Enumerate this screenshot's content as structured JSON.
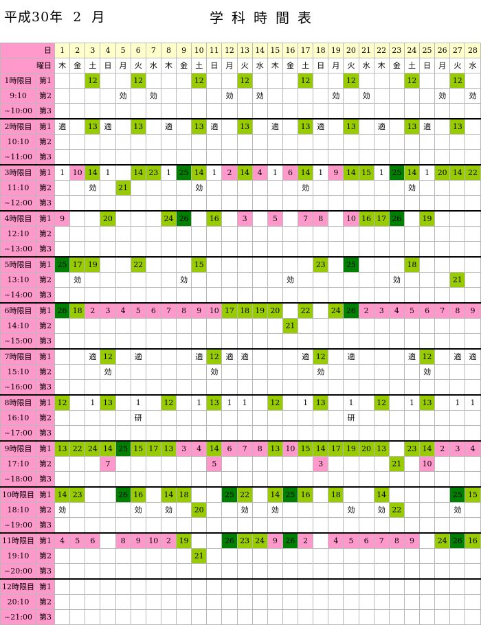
{
  "header": {
    "era": "平成30年  2  月",
    "title": "学科時間表"
  },
  "labels": {
    "day": "日",
    "weekday": "曜日",
    "sub": [
      "第1",
      "第2",
      "第3"
    ]
  },
  "days": [
    1,
    2,
    3,
    4,
    5,
    6,
    7,
    8,
    9,
    10,
    11,
    12,
    13,
    14,
    15,
    16,
    17,
    18,
    19,
    20,
    21,
    22,
    23,
    24,
    25,
    26,
    27,
    28
  ],
  "weekdays": [
    "木",
    "金",
    "土",
    "日",
    "月",
    "火",
    "水",
    "木",
    "金",
    "土",
    "日",
    "月",
    "火",
    "水",
    "木",
    "金",
    "土",
    "日",
    "月",
    "火",
    "水",
    "木",
    "金",
    "土",
    "日",
    "月",
    "火",
    "水"
  ],
  "legend_colors": {
    "g": "#99cc00",
    "p": "#ff99cc",
    "d": "#008000"
  },
  "periods": [
    {
      "name": "1時限目",
      "start": "9:10",
      "end": "~10:00",
      "rows": [
        {
          "3": [
            "12",
            "g"
          ],
          "6": [
            "12",
            "g"
          ],
          "10": [
            "12",
            "g"
          ],
          "13": [
            "12",
            "g"
          ],
          "17": [
            "12",
            "g"
          ],
          "20": [
            "12",
            "g"
          ],
          "24": [
            "12",
            "g"
          ],
          "27": [
            "12",
            "g"
          ]
        },
        {
          "5": [
            "効",
            ""
          ],
          "7": [
            "効",
            ""
          ],
          "12": [
            "効",
            ""
          ],
          "14": [
            "効",
            ""
          ],
          "19": [
            "効",
            ""
          ],
          "21": [
            "効",
            ""
          ],
          "26": [
            "効",
            ""
          ],
          "28": [
            "効",
            ""
          ]
        },
        {}
      ]
    },
    {
      "name": "2時限目",
      "start": "10:10",
      "end": "~11:00",
      "rows": [
        {
          "1": [
            "適",
            ""
          ],
          "3": [
            "13",
            "g"
          ],
          "4": [
            "適",
            ""
          ],
          "6": [
            "13",
            "g"
          ],
          "8": [
            "適",
            ""
          ],
          "10": [
            "13",
            "g"
          ],
          "11": [
            "適",
            ""
          ],
          "13": [
            "13",
            "g"
          ],
          "15": [
            "適",
            ""
          ],
          "17": [
            "13",
            "g"
          ],
          "18": [
            "適",
            ""
          ],
          "20": [
            "13",
            "g"
          ],
          "22": [
            "適",
            ""
          ],
          "24": [
            "13",
            "g"
          ],
          "25": [
            "適",
            ""
          ],
          "27": [
            "13",
            "g"
          ]
        },
        {},
        {}
      ]
    },
    {
      "name": "3時限目",
      "start": "11:10",
      "end": "~12:00",
      "rows": [
        {
          "1": [
            "1",
            ""
          ],
          "2": [
            "10",
            "p"
          ],
          "3": [
            "14",
            "g"
          ],
          "4": [
            "1",
            ""
          ],
          "6": [
            "14",
            "g"
          ],
          "7": [
            "23",
            "g"
          ],
          "8": [
            "1",
            ""
          ],
          "9": [
            "25",
            "d"
          ],
          "10": [
            "14",
            "g"
          ],
          "11": [
            "1",
            ""
          ],
          "12": [
            "2",
            "p"
          ],
          "13": [
            "14",
            "g"
          ],
          "14": [
            "4",
            "p"
          ],
          "15": [
            "1",
            ""
          ],
          "16": [
            "6",
            "p"
          ],
          "17": [
            "14",
            "g"
          ],
          "18": [
            "1",
            ""
          ],
          "19": [
            "9",
            "p"
          ],
          "20": [
            "14",
            "g"
          ],
          "21": [
            "15",
            "g"
          ],
          "22": [
            "1",
            ""
          ],
          "23": [
            "25",
            "d"
          ],
          "24": [
            "14",
            "g"
          ],
          "25": [
            "1",
            ""
          ],
          "26": [
            "20",
            "g"
          ],
          "27": [
            "14",
            "g"
          ],
          "28": [
            "22",
            "g"
          ]
        },
        {
          "3": [
            "効",
            ""
          ],
          "5": [
            "21",
            "g"
          ],
          "10": [
            "効",
            ""
          ],
          "17": [
            "効",
            ""
          ],
          "24": [
            "効",
            ""
          ]
        },
        {}
      ]
    },
    {
      "name": "4時限目",
      "start": "12:10",
      "end": "~13:00",
      "rows": [
        {
          "1": [
            "9",
            "p"
          ],
          "4": [
            "20",
            "g"
          ],
          "8": [
            "24",
            "g"
          ],
          "9": [
            "26",
            "d"
          ],
          "11": [
            "16",
            "g"
          ],
          "13": [
            "3",
            "p"
          ],
          "15": [
            "5",
            "p"
          ],
          "17": [
            "7",
            "p"
          ],
          "18": [
            "8",
            "p"
          ],
          "20": [
            "10",
            "p"
          ],
          "21": [
            "16",
            "g"
          ],
          "22": [
            "17",
            "g"
          ],
          "23": [
            "26",
            "d"
          ],
          "25": [
            "19",
            "g"
          ]
        },
        {},
        {}
      ]
    },
    {
      "name": "5時限目",
      "start": "13:10",
      "end": "~14:00",
      "rows": [
        {
          "1": [
            "25",
            "d"
          ],
          "2": [
            "17",
            "g"
          ],
          "3": [
            "19",
            "g"
          ],
          "6": [
            "22",
            "g"
          ],
          "10": [
            "15",
            "g"
          ],
          "18": [
            "23",
            "g"
          ],
          "20": [
            "25",
            "d"
          ],
          "24": [
            "18",
            "g"
          ]
        },
        {
          "2": [
            "効",
            ""
          ],
          "9": [
            "効",
            ""
          ],
          "16": [
            "効",
            ""
          ],
          "23": [
            "効",
            ""
          ],
          "27": [
            "21",
            "g"
          ]
        },
        {}
      ]
    },
    {
      "name": "6時限目",
      "start": "14:10",
      "end": "~15:00",
      "rows": [
        {
          "1": [
            "26",
            "d"
          ],
          "2": [
            "18",
            "g"
          ],
          "3": [
            "2",
            "p"
          ],
          "4": [
            "3",
            "p"
          ],
          "5": [
            "4",
            "p"
          ],
          "6": [
            "5",
            "p"
          ],
          "7": [
            "6",
            "p"
          ],
          "8": [
            "7",
            "p"
          ],
          "9": [
            "8",
            "p"
          ],
          "10": [
            "9",
            "p"
          ],
          "11": [
            "10",
            "p"
          ],
          "12": [
            "17",
            "g"
          ],
          "13": [
            "18",
            "g"
          ],
          "14": [
            "19",
            "g"
          ],
          "15": [
            "20",
            "g"
          ],
          "17": [
            "22",
            "g"
          ],
          "19": [
            "24",
            "g"
          ],
          "20": [
            "26",
            "d"
          ],
          "21": [
            "2",
            "p"
          ],
          "22": [
            "3",
            "p"
          ],
          "23": [
            "4",
            "p"
          ],
          "24": [
            "5",
            "p"
          ],
          "25": [
            "6",
            "p"
          ],
          "26": [
            "7",
            "p"
          ],
          "27": [
            "8",
            "p"
          ],
          "28": [
            "9",
            "p"
          ]
        },
        {
          "16": [
            "21",
            "g"
          ]
        },
        {}
      ]
    },
    {
      "name": "7時限目",
      "start": "15:10",
      "end": "~16:00",
      "rows": [
        {
          "3": [
            "適",
            ""
          ],
          "4": [
            "12",
            "g"
          ],
          "6": [
            "適",
            ""
          ],
          "10": [
            "適",
            ""
          ],
          "11": [
            "12",
            "g"
          ],
          "12": [
            "適",
            ""
          ],
          "13": [
            "適",
            ""
          ],
          "17": [
            "適",
            ""
          ],
          "18": [
            "12",
            "g"
          ],
          "20": [
            "適",
            ""
          ],
          "24": [
            "適",
            ""
          ],
          "25": [
            "12",
            "g"
          ],
          "27": [
            "適",
            ""
          ],
          "28": [
            "適",
            ""
          ]
        },
        {
          "4": [
            "効",
            ""
          ],
          "11": [
            "効",
            ""
          ],
          "18": [
            "効",
            ""
          ],
          "25": [
            "効",
            ""
          ]
        },
        {}
      ]
    },
    {
      "name": "8時限目",
      "start": "16:10",
      "end": "~17:00",
      "rows": [
        {
          "1": [
            "12",
            "g"
          ],
          "3": [
            "1",
            ""
          ],
          "4": [
            "13",
            "g"
          ],
          "6": [
            "1",
            ""
          ],
          "8": [
            "12",
            "g"
          ],
          "10": [
            "1",
            ""
          ],
          "11": [
            "13",
            "g"
          ],
          "12": [
            "1",
            ""
          ],
          "13": [
            "1",
            ""
          ],
          "15": [
            "12",
            "g"
          ],
          "17": [
            "1",
            ""
          ],
          "18": [
            "13",
            "g"
          ],
          "20": [
            "1",
            ""
          ],
          "22": [
            "12",
            "g"
          ],
          "24": [
            "1",
            ""
          ],
          "25": [
            "13",
            "g"
          ],
          "27": [
            "1",
            ""
          ],
          "28": [
            "1",
            ""
          ]
        },
        {
          "6": [
            "研",
            ""
          ],
          "20": [
            "研",
            ""
          ]
        },
        {}
      ]
    },
    {
      "name": "9時限目",
      "start": "17:10",
      "end": "~18:00",
      "rows": [
        {
          "1": [
            "13",
            "g"
          ],
          "2": [
            "22",
            "g"
          ],
          "3": [
            "24",
            "g"
          ],
          "4": [
            "14",
            "g"
          ],
          "5": [
            "25",
            "d"
          ],
          "6": [
            "15",
            "g"
          ],
          "7": [
            "17",
            "g"
          ],
          "8": [
            "13",
            "g"
          ],
          "9": [
            "3",
            "p"
          ],
          "10": [
            "4",
            "p"
          ],
          "11": [
            "14",
            "g"
          ],
          "12": [
            "6",
            "p"
          ],
          "13": [
            "7",
            "p"
          ],
          "14": [
            "8",
            "p"
          ],
          "15": [
            "13",
            "g"
          ],
          "16": [
            "10",
            "p"
          ],
          "17": [
            "15",
            "g"
          ],
          "18": [
            "14",
            "g"
          ],
          "19": [
            "17",
            "g"
          ],
          "20": [
            "19",
            "g"
          ],
          "21": [
            "20",
            "g"
          ],
          "22": [
            "13",
            "g"
          ],
          "24": [
            "23",
            "g"
          ],
          "25": [
            "14",
            "g"
          ],
          "26": [
            "2",
            "p"
          ],
          "27": [
            "3",
            "p"
          ],
          "28": [
            "4",
            "p"
          ]
        },
        {
          "4": [
            "7",
            "p"
          ],
          "11": [
            "5",
            "p"
          ],
          "18": [
            "3",
            "p"
          ],
          "23": [
            "21",
            "g"
          ],
          "25": [
            "10",
            "p"
          ]
        },
        {}
      ]
    },
    {
      "name": "10時限目",
      "start": "18:10",
      "end": "~19:00",
      "rows": [
        {
          "1": [
            "14",
            "g"
          ],
          "2": [
            "23",
            "g"
          ],
          "5": [
            "26",
            "d"
          ],
          "6": [
            "16",
            "g"
          ],
          "8": [
            "14",
            "g"
          ],
          "9": [
            "18",
            "g"
          ],
          "12": [
            "25",
            "d"
          ],
          "13": [
            "22",
            "g"
          ],
          "15": [
            "14",
            "g"
          ],
          "16": [
            "25",
            "d"
          ],
          "17": [
            "16",
            "g"
          ],
          "19": [
            "18",
            "g"
          ],
          "22": [
            "14",
            "g"
          ],
          "27": [
            "25",
            "d"
          ],
          "28": [
            "15",
            "g"
          ]
        },
        {
          "1": [
            "効",
            ""
          ],
          "6": [
            "効",
            ""
          ],
          "8": [
            "効",
            ""
          ],
          "10": [
            "20",
            "g"
          ],
          "13": [
            "効",
            ""
          ],
          "15": [
            "効",
            ""
          ],
          "20": [
            "効",
            ""
          ],
          "22": [
            "効",
            ""
          ],
          "23": [
            "22",
            "g"
          ],
          "27": [
            "効",
            ""
          ]
        },
        {}
      ]
    },
    {
      "name": "11時限目",
      "start": "19:10",
      "end": "~20:00",
      "rows": [
        {
          "1": [
            "4",
            "p"
          ],
          "2": [
            "5",
            "p"
          ],
          "3": [
            "6",
            "p"
          ],
          "5": [
            "8",
            "p"
          ],
          "6": [
            "9",
            "p"
          ],
          "7": [
            "10",
            "p"
          ],
          "8": [
            "2",
            "p"
          ],
          "9": [
            "19",
            "g"
          ],
          "12": [
            "26",
            "d"
          ],
          "13": [
            "23",
            "g"
          ],
          "14": [
            "24",
            "g"
          ],
          "15": [
            "9",
            "p"
          ],
          "16": [
            "26",
            "d"
          ],
          "17": [
            "2",
            "p"
          ],
          "19": [
            "4",
            "p"
          ],
          "20": [
            "5",
            "p"
          ],
          "21": [
            "6",
            "p"
          ],
          "22": [
            "7",
            "p"
          ],
          "23": [
            "8",
            "p"
          ],
          "24": [
            "9",
            "p"
          ],
          "26": [
            "24",
            "g"
          ],
          "27": [
            "26",
            "d"
          ],
          "28": [
            "16",
            "g"
          ]
        },
        {
          "10": [
            "21",
            "g"
          ]
        },
        {}
      ]
    },
    {
      "name": "12時限目",
      "start": "20:10",
      "end": "~21:00",
      "rows": [
        {},
        {},
        {}
      ]
    }
  ]
}
